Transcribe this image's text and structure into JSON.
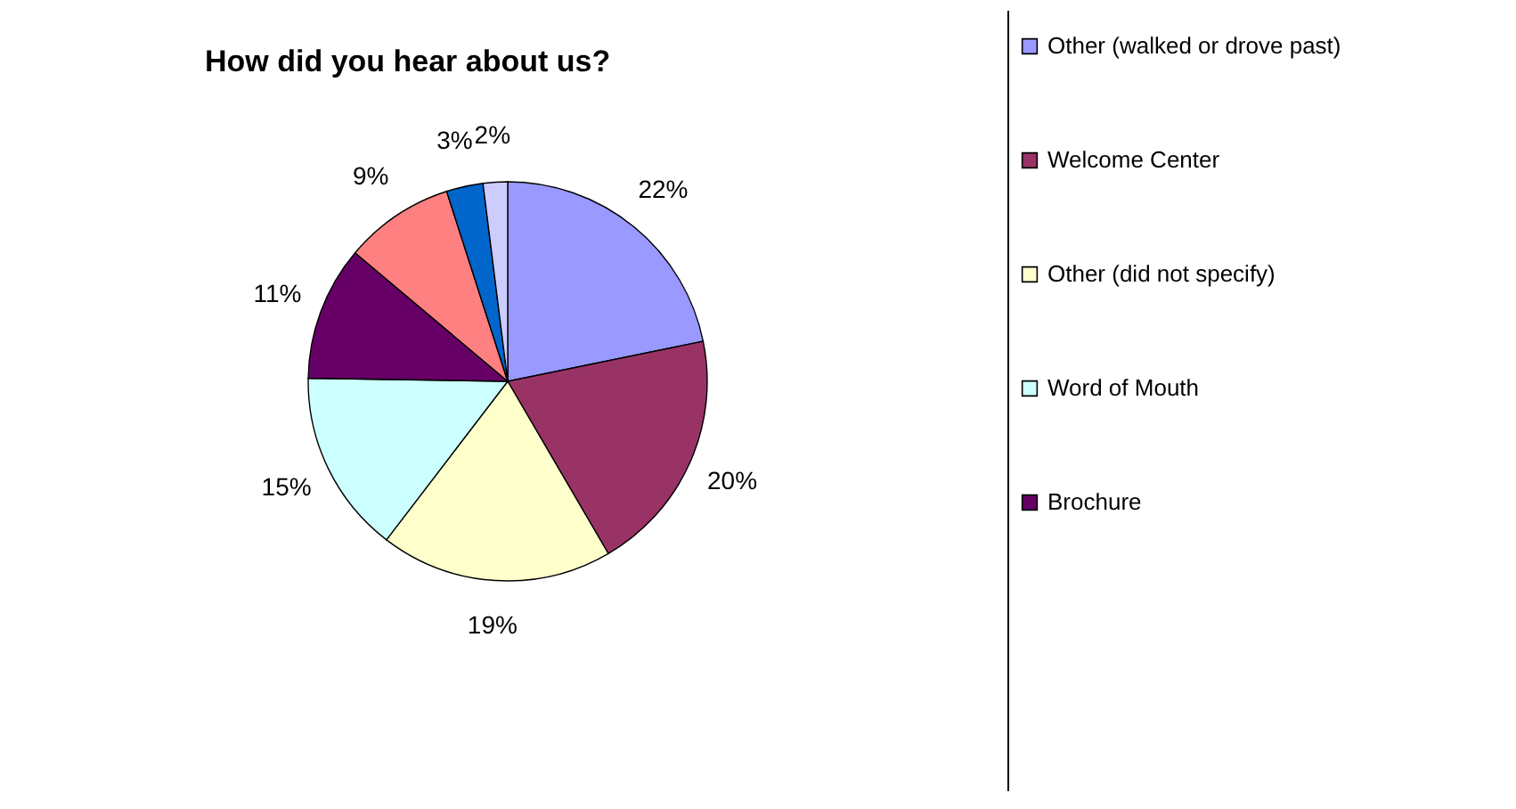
{
  "chart_data": {
    "type": "pie",
    "title": "How did you hear about us?",
    "categories": [
      "Other (walked or drove past)",
      "Welcome Center",
      "Other (did not specify)",
      "Word of Mouth",
      "Brochure",
      null,
      null,
      null
    ],
    "values": [
      22,
      20,
      19,
      15,
      11,
      9,
      3,
      2
    ],
    "value_labels": [
      "22%",
      "20%",
      "19%",
      "15%",
      "11%",
      "9%",
      "3%",
      "2%"
    ],
    "colors": [
      "#9999ff",
      "#993366",
      "#ffffcc",
      "#ccffff",
      "#660066",
      "#ff8080",
      "#0066cc",
      "#ccccff"
    ],
    "legend": "right"
  }
}
